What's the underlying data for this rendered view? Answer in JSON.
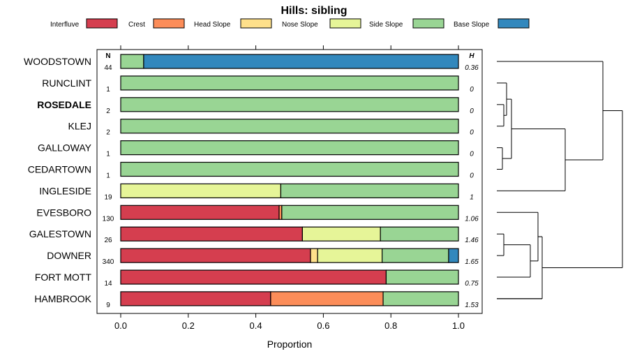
{
  "chart_data": {
    "type": "bar",
    "orientation": "horizontal",
    "stacked": true,
    "title": "Hills: sibling",
    "xlabel": "Proportion",
    "xlim": [
      0,
      1
    ],
    "x_ticks": [
      "0.0",
      "0.2",
      "0.4",
      "0.6",
      "0.8",
      "1.0"
    ],
    "n_header": "N",
    "h_header": "H",
    "legend": [
      {
        "name": "Interfluve",
        "color": "#D53E4F"
      },
      {
        "name": "Crest",
        "color": "#FC8D59"
      },
      {
        "name": "Head Slope",
        "color": "#FEE08B"
      },
      {
        "name": "Nose Slope",
        "color": "#E6F598"
      },
      {
        "name": "Side Slope",
        "color": "#99D594"
      },
      {
        "name": "Base Slope",
        "color": "#3288BD"
      }
    ],
    "rows": [
      {
        "name": "WOODSTOWN",
        "n": "44",
        "h": "0.36",
        "bold": false,
        "values": [
          0,
          0,
          0,
          0,
          0.068,
          0.932
        ]
      },
      {
        "name": "RUNCLINT",
        "n": "1",
        "h": "0",
        "bold": false,
        "values": [
          0,
          0,
          0,
          0,
          1,
          0
        ]
      },
      {
        "name": "ROSEDALE",
        "n": "2",
        "h": "0",
        "bold": true,
        "values": [
          0,
          0,
          0,
          0,
          1,
          0
        ]
      },
      {
        "name": "KLEJ",
        "n": "2",
        "h": "0",
        "bold": false,
        "values": [
          0,
          0,
          0,
          0,
          1,
          0
        ]
      },
      {
        "name": "GALLOWAY",
        "n": "1",
        "h": "0",
        "bold": false,
        "values": [
          0,
          0,
          0,
          0,
          1,
          0
        ]
      },
      {
        "name": "CEDARTOWN",
        "n": "1",
        "h": "0",
        "bold": false,
        "values": [
          0,
          0,
          0,
          0,
          1,
          0
        ]
      },
      {
        "name": "INGLESIDE",
        "n": "19",
        "h": "1",
        "bold": false,
        "values": [
          0,
          0,
          0,
          0.474,
          0.526,
          0
        ]
      },
      {
        "name": "EVESBORO",
        "n": "130",
        "h": "1.06",
        "bold": false,
        "values": [
          0.469,
          0.008,
          0,
          0,
          0.523,
          0
        ]
      },
      {
        "name": "GALESTOWN",
        "n": "26",
        "h": "1.46",
        "bold": false,
        "values": [
          0.538,
          0,
          0,
          0.231,
          0.231,
          0
        ]
      },
      {
        "name": "DOWNER",
        "n": "340",
        "h": "1.65",
        "bold": false,
        "values": [
          0.562,
          0,
          0.021,
          0.191,
          0.197,
          0.029
        ]
      },
      {
        "name": "FORT MOTT",
        "n": "14",
        "h": "0.75",
        "bold": false,
        "values": [
          0.786,
          0,
          0,
          0,
          0.214,
          0
        ]
      },
      {
        "name": "HAMBROOK",
        "n": "9",
        "h": "1.53",
        "bold": false,
        "values": [
          0.444,
          0.333,
          0,
          0,
          0.223,
          0
        ]
      }
    ]
  }
}
